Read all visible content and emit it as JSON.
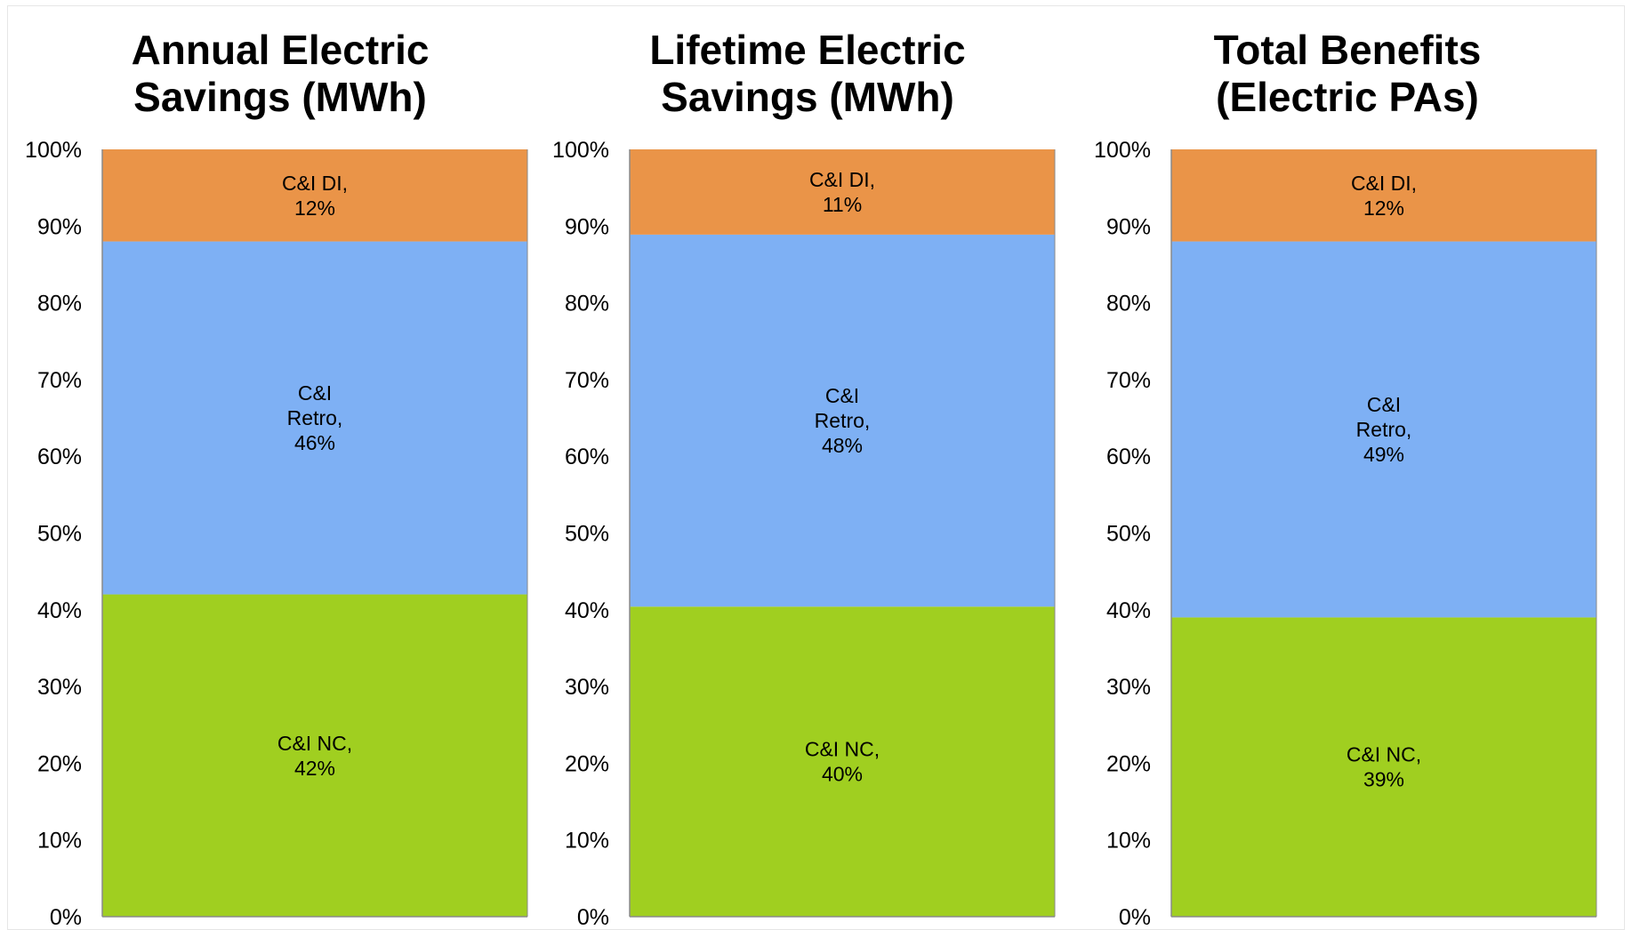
{
  "chart_data": [
    {
      "type": "bar",
      "stacked": "percent",
      "title_lines": [
        "Annual Electric",
        "Savings (MWh)"
      ],
      "categories": [
        ""
      ],
      "ylim": [
        0,
        100
      ],
      "y_ticks": [
        "0%",
        "10%",
        "20%",
        "30%",
        "40%",
        "50%",
        "60%",
        "70%",
        "80%",
        "90%",
        "100%"
      ],
      "grid": false,
      "legend": "none",
      "series": [
        {
          "name": "C&I NC",
          "values": [
            42
          ],
          "color": "#a0cf20",
          "label_lines": [
            "C&I NC,",
            "42%"
          ]
        },
        {
          "name": "C&I Retro",
          "values": [
            46
          ],
          "color": "#7eb0f4",
          "label_lines": [
            "C&I",
            "Retro,",
            "46%"
          ]
        },
        {
          "name": "C&I DI",
          "values": [
            12
          ],
          "color": "#ea9448",
          "label_lines": [
            "C&I DI,",
            "12%"
          ]
        }
      ]
    },
    {
      "type": "bar",
      "stacked": "percent",
      "title_lines": [
        "Lifetime Electric",
        "Savings (MWh)"
      ],
      "categories": [
        ""
      ],
      "ylim": [
        0,
        100
      ],
      "y_ticks": [
        "0%",
        "10%",
        "20%",
        "30%",
        "40%",
        "50%",
        "60%",
        "70%",
        "80%",
        "90%",
        "100%"
      ],
      "grid": false,
      "legend": "none",
      "series": [
        {
          "name": "C&I NC",
          "values": [
            40
          ],
          "color": "#a0cf20",
          "label_lines": [
            "C&I NC,",
            "40%"
          ]
        },
        {
          "name": "C&I Retro",
          "values": [
            48
          ],
          "color": "#7eb0f4",
          "label_lines": [
            "C&I",
            "Retro,",
            "48%"
          ]
        },
        {
          "name": "C&I DI",
          "values": [
            11
          ],
          "color": "#ea9448",
          "label_lines": [
            "C&I DI,",
            "11%"
          ]
        }
      ]
    },
    {
      "type": "bar",
      "stacked": "percent",
      "title_lines": [
        "Total Benefits",
        "(Electric PAs)"
      ],
      "categories": [
        ""
      ],
      "ylim": [
        0,
        100
      ],
      "y_ticks": [
        "0%",
        "10%",
        "20%",
        "30%",
        "40%",
        "50%",
        "60%",
        "70%",
        "80%",
        "90%",
        "100%"
      ],
      "grid": false,
      "legend": "none",
      "series": [
        {
          "name": "C&I NC",
          "values": [
            39
          ],
          "color": "#a0cf20",
          "label_lines": [
            "C&I NC,",
            "39%"
          ]
        },
        {
          "name": "C&I Retro",
          "values": [
            49
          ],
          "color": "#7eb0f4",
          "label_lines": [
            "C&I",
            "Retro,",
            "49%"
          ]
        },
        {
          "name": "C&I DI",
          "values": [
            12
          ],
          "color": "#ea9448",
          "label_lines": [
            "C&I DI,",
            "12%"
          ]
        }
      ]
    }
  ]
}
